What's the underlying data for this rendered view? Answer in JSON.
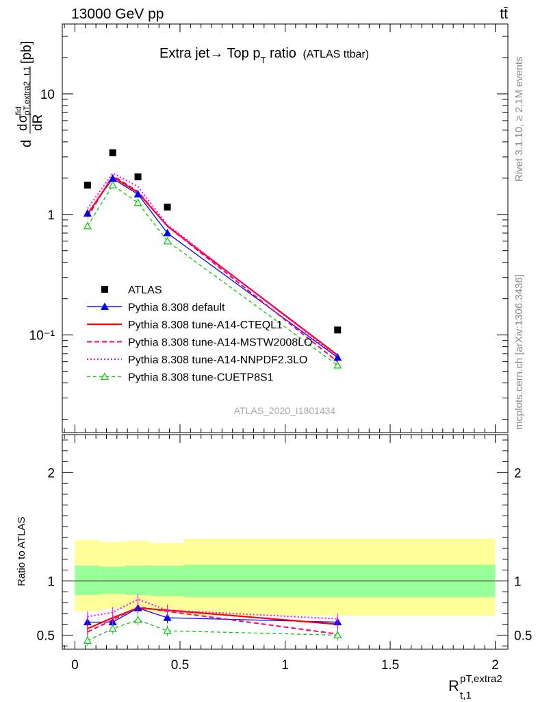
{
  "header": {
    "energy_label": "13000 GeV pp",
    "process_label": "tt̄"
  },
  "title": {
    "main": "Extra jet→ Top p",
    "sub": "T",
    "suffix": " ratio",
    "experiment": "(ATLAS ttbar)"
  },
  "side_labels": {
    "rivet": "Rivet 3.1.10, ≥ 2.1M events",
    "mcplots": "mcplots.cern.ch [arXiv:1306.3436]"
  },
  "watermark": "ATLAS_2020_I1801434",
  "axes": {
    "ylabel_main": "dR_{t,1}^{pT,extra2} dσ^{fid} [pb]",
    "ylabel_ratio": "Ratio to ATLAS",
    "xlabel_main": "R",
    "xlabel_sub": "t,1",
    "xlabel_sup": "pT,extra2",
    "xticks": [
      "0",
      "0.5",
      "1",
      "1.5",
      "2"
    ],
    "yticks_main": [
      "10⁻¹",
      "1",
      "10"
    ],
    "yticks_ratio": [
      "0.5",
      "1",
      "2"
    ]
  },
  "legend": [
    {
      "label": "ATLAS",
      "color": "#000000",
      "style": "square"
    },
    {
      "label": "Pythia 8.308 default",
      "color": "#0000ff",
      "style": "solid-triangle"
    },
    {
      "label": "Pythia 8.308 tune-A14-CTEQL1",
      "color": "#ff0000",
      "style": "solid"
    },
    {
      "label": "Pythia 8.308 tune-A14-MSTW2008LO",
      "color": "#ff0066",
      "style": "dashed"
    },
    {
      "label": "Pythia 8.308 tune-A14-NNPDF2.3LO",
      "color": "#ff00ff",
      "style": "dotted"
    },
    {
      "label": "Pythia 8.308 tune-CUETP8S1",
      "color": "#00cc00",
      "style": "dashed-open-triangle"
    }
  ],
  "chart_data": {
    "type": "line",
    "x": [
      0.06,
      0.18,
      0.3,
      0.44,
      1.25
    ],
    "xlim": [
      -0.06,
      2.06
    ],
    "ylim_main": [
      0.0155,
      38
    ],
    "ylim_ratio": [
      0.37,
      2.35
    ],
    "log_y_main": true,
    "data": {
      "name": "ATLAS",
      "y": [
        1.75,
        3.25,
        2.05,
        1.15,
        0.11
      ]
    },
    "series": [
      {
        "name": "Pythia 8.308 default",
        "y": [
          1.02,
          1.98,
          1.47,
          0.7,
          0.065
        ],
        "ratio": [
          0.62,
          0.62,
          0.75,
          0.66,
          0.62
        ]
      },
      {
        "name": "Pythia 8.308 tune-A14-CTEQL1",
        "y": [
          1.0,
          2.05,
          1.52,
          0.8,
          0.068
        ],
        "ratio": [
          0.56,
          0.66,
          0.75,
          0.73,
          0.6
        ]
      },
      {
        "name": "Pythia 8.308 tune-A14-MSTW2008LO",
        "y": [
          0.95,
          2.1,
          1.55,
          0.8,
          0.06
        ],
        "ratio": [
          0.53,
          0.64,
          0.76,
          0.72,
          0.51
        ]
      },
      {
        "name": "Pythia 8.308 tune-A14-NNPDF2.3LO",
        "y": [
          1.12,
          2.2,
          1.7,
          0.82,
          0.066
        ],
        "ratio": [
          0.67,
          0.71,
          0.83,
          0.73,
          0.65
        ]
      },
      {
        "name": "Pythia 8.308 tune-CUETP8S1",
        "y": [
          0.8,
          1.75,
          1.25,
          0.6,
          0.056
        ],
        "ratio": [
          0.45,
          0.56,
          0.64,
          0.54,
          0.5
        ]
      }
    ],
    "uncertainty_bands": {
      "bin_edges": [
        0,
        0.12,
        0.24,
        0.36,
        0.52,
        2.0
      ],
      "inner_lo": [
        0.87,
        0.88,
        0.87,
        0.86,
        0.85
      ],
      "inner_hi": [
        1.14,
        1.13,
        1.14,
        1.14,
        1.15
      ],
      "outer_lo": [
        0.72,
        0.74,
        0.72,
        0.7,
        0.68
      ],
      "outer_hi": [
        1.38,
        1.36,
        1.37,
        1.35,
        1.39
      ],
      "inner_color": "#99ff99",
      "outer_color": "#ffff99"
    }
  }
}
